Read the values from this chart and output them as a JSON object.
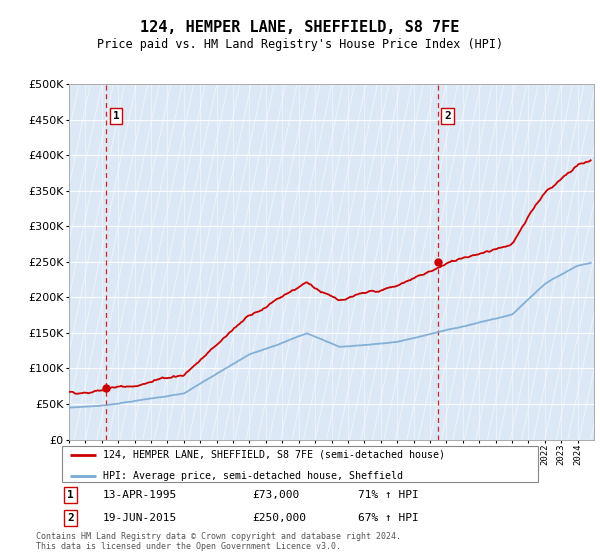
{
  "title": "124, HEMPER LANE, SHEFFIELD, S8 7FE",
  "subtitle": "Price paid vs. HM Land Registry's House Price Index (HPI)",
  "legend_line1": "124, HEMPER LANE, SHEFFIELD, S8 7FE (semi-detached house)",
  "legend_line2": "HPI: Average price, semi-detached house, Sheffield",
  "footnote": "Contains HM Land Registry data © Crown copyright and database right 2024.\nThis data is licensed under the Open Government Licence v3.0.",
  "sale1_date": "13-APR-1995",
  "sale1_price": 73000,
  "sale1_label": "71% ↑ HPI",
  "sale2_date": "19-JUN-2015",
  "sale2_price": 250000,
  "sale2_label": "67% ↑ HPI",
  "sale1_x": 1995.28,
  "sale2_x": 2015.47,
  "property_color": "#cc0000",
  "hpi_color": "#7aaad4",
  "vline_color": "#cc0000",
  "bg_color": "#dce8f5",
  "hatch_bg": "#c8d8eb",
  "ylim": [
    0,
    500000
  ],
  "xlim_start": 1993.0,
  "xlim_end": 2025.0,
  "hpi_start_year": 1993.0,
  "hpi_end_year": 2024.8
}
